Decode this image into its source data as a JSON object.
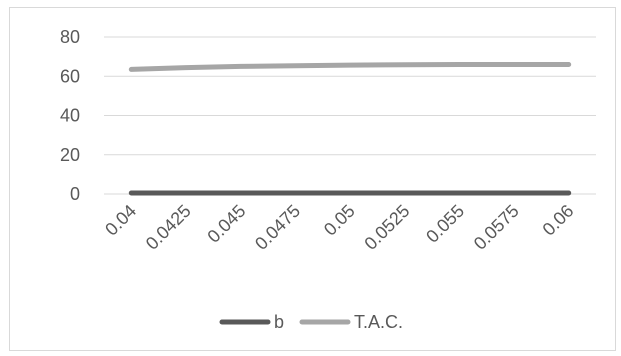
{
  "chart_data": {
    "type": "line",
    "title": "",
    "xlabel": "",
    "ylabel": "",
    "categories": [
      "0.04",
      "0.0425",
      "0.045",
      "0.0475",
      "0.05",
      "0.0525",
      "0.055",
      "0.0575",
      "0.06"
    ],
    "series": [
      {
        "name": "b",
        "color": "#595959",
        "values": [
          0.5,
          0.5,
          0.5,
          0.5,
          0.5,
          0.5,
          0.5,
          0.5,
          0.5
        ]
      },
      {
        "name": "T.A.C.",
        "color": "#a6a6a6",
        "values": [
          63.5,
          64.4,
          65.0,
          65.4,
          65.7,
          65.9,
          66.0,
          66.0,
          66.0
        ]
      }
    ],
    "ylim": [
      0,
      80
    ],
    "yticks": [
      "0",
      "20",
      "40",
      "60",
      "80"
    ],
    "grid": true,
    "legend": "bottom"
  }
}
